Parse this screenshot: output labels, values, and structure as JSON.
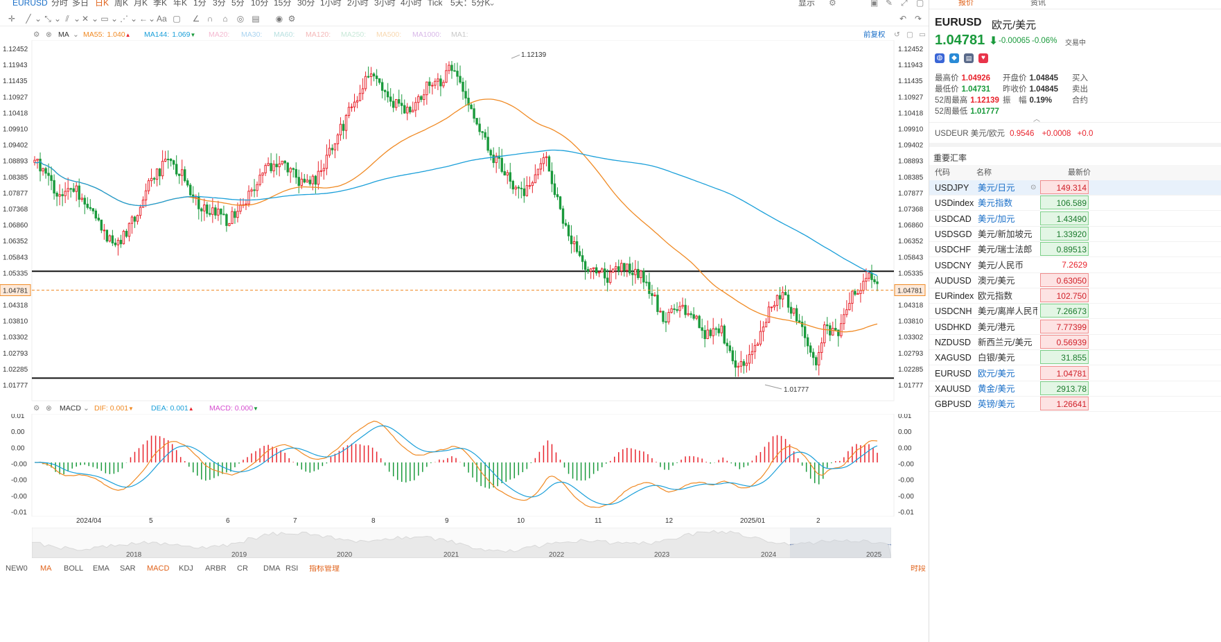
{
  "topbar": {
    "symbol": "EURUSD",
    "periods": [
      "分时",
      "多日",
      "日K",
      "周K",
      "月K",
      "季K",
      "年K",
      "1分",
      "3分",
      "5分",
      "10分",
      "15分",
      "30分",
      "1小时",
      "2小时",
      "3小时",
      "4小时",
      "Tick",
      "5天：5分K"
    ],
    "active_period": "日K",
    "display_label": "显示"
  },
  "main_legend": {
    "indicator": "MA",
    "items": [
      {
        "name": "MA55",
        "value": "1.040",
        "arrow": "▲",
        "color": "#f08a24"
      },
      {
        "name": "MA144",
        "value": "1.069",
        "arrow": "▼",
        "color": "#1a9fd9"
      },
      {
        "name": "MA20",
        "color": "#f4b8d0"
      },
      {
        "name": "MA30",
        "color": "#a9d3f0"
      },
      {
        "name": "MA60",
        "color": "#b8e0e0"
      },
      {
        "name": "MA120",
        "color": "#f4b8b8"
      },
      {
        "name": "MA250",
        "color": "#c8e8d8"
      },
      {
        "name": "MA500",
        "color": "#f8d8b0"
      },
      {
        "name": "MA1000",
        "color": "#d8b8e8"
      },
      {
        "name": "MA1",
        "color": "#c8c8c8"
      }
    ],
    "adjust_label": "前复权"
  },
  "price_axis": [
    "1.12452",
    "1.11943",
    "1.11435",
    "1.10927",
    "1.10418",
    "1.09910",
    "1.09402",
    "1.08893",
    "1.08385",
    "1.07877",
    "1.07368",
    "1.06860",
    "1.06352",
    "1.05843",
    "1.05335",
    "1.04781",
    "1.04318",
    "1.03810",
    "1.03302",
    "1.02793",
    "1.02285",
    "1.01777"
  ],
  "current_price_label": "1.04781",
  "high_marker": "1.12139",
  "low_marker": "1.01777",
  "macd_legend": {
    "indicator": "MACD",
    "dif_label": "DIF:",
    "dif_value": "0.001",
    "dif_arrow": "▼",
    "dea_label": "DEA:",
    "dea_value": "0.001",
    "dea_arrow": "▲",
    "macd_label": "MACD:",
    "macd_value": "0.000",
    "macd_arrow": "▼"
  },
  "macd_axis": [
    "0.01",
    "0.00",
    "0.00",
    "-0.00",
    "-0.00",
    "-0.00",
    "-0.01"
  ],
  "time_axis": [
    "2024/04",
    "5",
    "6",
    "7",
    "8",
    "9",
    "10",
    "11",
    "12",
    "2025/01",
    "2"
  ],
  "overview_years": [
    "2018",
    "2019",
    "2020",
    "2021",
    "2022",
    "2023",
    "2024",
    "2025"
  ],
  "bottom_bar": {
    "items": [
      "NEW0",
      "MA",
      "BOLL",
      "EMA",
      "SAR",
      "MACD",
      "KDJ",
      "ARBR",
      "CR",
      "DMA",
      "RSI",
      "指标管理"
    ],
    "active": [
      "MA",
      "MACD"
    ],
    "right_label": "时段"
  },
  "right_panel": {
    "tabs": [
      "报价",
      "资讯"
    ],
    "symbol": "EURUSD",
    "name": "欧元/美元",
    "price": "1.04781",
    "change": "-0.00065",
    "change_pct": "-0.06%",
    "status": "交易中",
    "stats": [
      {
        "label": "最高价",
        "value": "1.04926",
        "tone": "red"
      },
      {
        "label": "开盘价",
        "value": "1.04845",
        "tone": "plain"
      },
      {
        "label": "买入",
        "value": "",
        "tone": "plain"
      },
      {
        "label": "最低价",
        "value": "1.04731",
        "tone": "green"
      },
      {
        "label": "昨收价",
        "value": "1.04845",
        "tone": "plain"
      },
      {
        "label": "卖出",
        "value": "",
        "tone": "plain"
      },
      {
        "label": "52周最高",
        "value": "1.12139",
        "tone": "red"
      },
      {
        "label": "振　幅",
        "value": "0.19%",
        "tone": "plain"
      },
      {
        "label": "合约",
        "value": "",
        "tone": "plain"
      },
      {
        "label": "52周最低",
        "value": "1.01777",
        "tone": "green"
      }
    ],
    "related": {
      "symbol": "USDEUR",
      "name": "美元/欧元",
      "price": "0.9546",
      "change": "+0.0008",
      "change_pct": "+0.0"
    },
    "rates_title": "重要汇率",
    "columns": [
      "代码",
      "名称",
      "最新价"
    ],
    "rates": [
      {
        "code": "USDJPY",
        "name": "美元/日元",
        "price": "149.314",
        "up": false,
        "selected": true,
        "link": true
      },
      {
        "code": "USDindex",
        "name": "美元指数",
        "price": "106.589",
        "up": true,
        "link": true
      },
      {
        "code": "USDCAD",
        "name": "美元/加元",
        "price": "1.43490",
        "up": true,
        "link": true
      },
      {
        "code": "USDSGD",
        "name": "美元/新加坡元",
        "price": "1.33920",
        "up": true,
        "link": false
      },
      {
        "code": "USDCHF",
        "name": "美元/瑞士法郎",
        "price": "0.89513",
        "up": true,
        "link": false
      },
      {
        "code": "USDCNY",
        "name": "美元/人民币",
        "price": "7.2629",
        "up": false,
        "plain": true,
        "link": false
      },
      {
        "code": "AUDUSD",
        "name": "澳元/美元",
        "price": "0.63050",
        "up": false,
        "link": false
      },
      {
        "code": "EURindex",
        "name": "欧元指数",
        "price": "102.750",
        "up": false,
        "link": false
      },
      {
        "code": "USDCNH",
        "name": "美元/离岸人民币",
        "price": "7.26673",
        "up": true,
        "link": false
      },
      {
        "code": "USDHKD",
        "name": "美元/港元",
        "price": "7.77399",
        "up": false,
        "link": false
      },
      {
        "code": "NZDUSD",
        "name": "新西兰元/美元",
        "price": "0.56939",
        "up": false,
        "link": false
      },
      {
        "code": "XAGUSD",
        "name": "白银/美元",
        "price": "31.855",
        "up": true,
        "link": false
      },
      {
        "code": "EURUSD",
        "name": "欧元/美元",
        "price": "1.04781",
        "up": false,
        "link": true
      },
      {
        "code": "XAUUSD",
        "name": "黄金/美元",
        "price": "2913.78",
        "up": true,
        "link": true
      },
      {
        "code": "GBPUSD",
        "name": "英镑/美元",
        "price": "1.26641",
        "up": false,
        "link": true
      }
    ]
  },
  "colors": {
    "up": "#e8232c",
    "down": "#1a9a3c",
    "ma55": "#f08a24",
    "ma144": "#1a9fd9",
    "dif": "#f08a24",
    "dea": "#1a9fd9",
    "accent": "#e0621a",
    "link": "#1a6fc8"
  },
  "chart_data": {
    "type": "candlestick",
    "y_axis_range": [
      1.01777,
      1.12452
    ],
    "support_resistance_levels": [
      1.0538,
      1.0199
    ],
    "series": [
      {
        "name": "MA55",
        "last": "1.040"
      },
      {
        "name": "MA144",
        "last": "1.069"
      }
    ],
    "macd": {
      "DIF": "0.001",
      "DEA": "0.001",
      "MACD": "0.000"
    }
  }
}
